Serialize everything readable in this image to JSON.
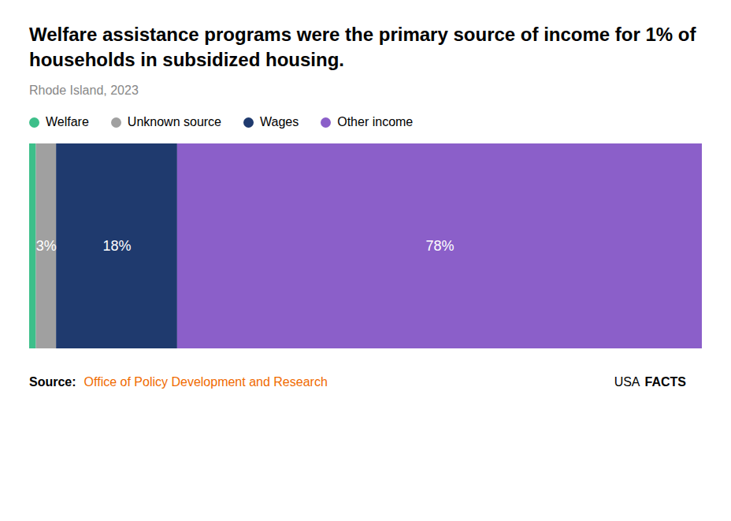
{
  "chart_data": {
    "type": "bar",
    "orientation": "horizontal",
    "stacked": true,
    "title": "Welfare assistance programs were the primary source of income for 1% of households in subsidized housing.",
    "subtitle": "Rhode Island, 2023",
    "categories": [
      null
    ],
    "series": [
      {
        "name": "Welfare",
        "color": "#3dbf8a",
        "values": [
          1
        ]
      },
      {
        "name": "Unknown source",
        "color": "#a0a0a0",
        "values": [
          3
        ],
        "value_labels": [
          "3%"
        ]
      },
      {
        "name": "Wages",
        "color": "#1f3a6e",
        "values": [
          18
        ],
        "value_labels": [
          "18%"
        ]
      },
      {
        "name": "Other income",
        "color": "#8b5fc9",
        "values": [
          78
        ],
        "value_labels": [
          "78%"
        ]
      }
    ],
    "xlim": [
      0,
      100
    ],
    "data_labels": true,
    "tick_labels": false,
    "grid": false,
    "legend": "top left",
    "source_label": "Source:",
    "source": "Office of Policy Development and Research",
    "source_color": "#f06a00",
    "annotations": [
      "USA",
      "FACTS"
    ]
  }
}
